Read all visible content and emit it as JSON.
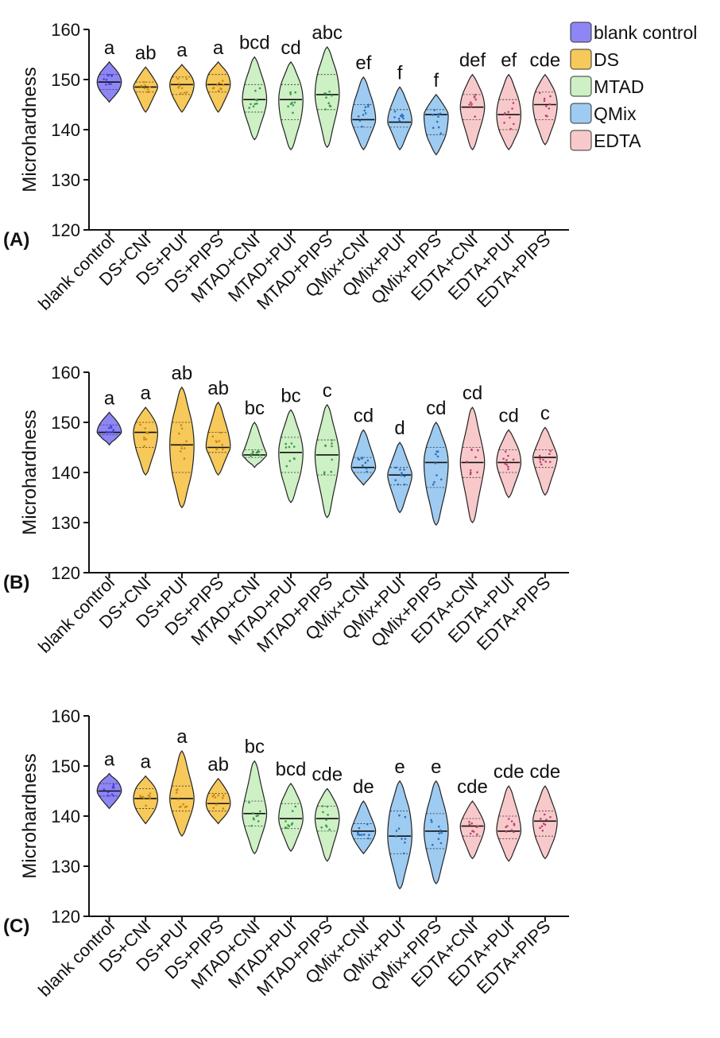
{
  "chart_data": [
    {
      "type": "violin",
      "panel_label": "(A)",
      "ylabel": "Microhardness",
      "ylim": [
        120,
        160
      ],
      "yticks": [
        "120",
        "130",
        "140",
        "150",
        "160"
      ],
      "categories": [
        "blank control",
        "DS+CNI",
        "DS+PUI",
        "DS+PIPS",
        "MTAD+CNI",
        "MTAD+PUI",
        "MTAD+PIPS",
        "QMix+CNI",
        "QMix+PUI",
        "QMix+PIPS",
        "EDTA+CNI",
        "EDTA+PUI",
        "EDTA+PIPS"
      ],
      "groups": [
        "blank control",
        "DS",
        "DS",
        "DS",
        "MTAD",
        "MTAD",
        "MTAD",
        "QMix",
        "QMix",
        "QMix",
        "EDTA",
        "EDTA",
        "EDTA"
      ],
      "letters": [
        "a",
        "ab",
        "a",
        "a",
        "bcd",
        "cd",
        "abc",
        "ef",
        "f",
        "f",
        "def",
        "ef",
        "cde"
      ],
      "min": [
        145.5,
        143.5,
        143.5,
        143.5,
        138,
        136,
        136.5,
        136,
        136,
        135,
        136,
        136,
        137
      ],
      "q1": [
        148,
        147.5,
        147,
        147.5,
        143.5,
        142,
        144,
        140.5,
        140.5,
        139,
        142,
        140,
        142
      ],
      "median": [
        149.5,
        148.5,
        149,
        149,
        146,
        146,
        147,
        142,
        141.5,
        143,
        144.5,
        143,
        145
      ],
      "q3": [
        151,
        149.5,
        150.5,
        151,
        149,
        149,
        151,
        145,
        144,
        144,
        147,
        146,
        147.5
      ],
      "max": [
        153.5,
        152.5,
        153,
        153.5,
        154.5,
        153.5,
        156.5,
        150.5,
        148.5,
        147,
        151,
        151,
        151
      ],
      "legend_position": "top-right"
    },
    {
      "type": "violin",
      "panel_label": "(B)",
      "ylabel": "Microhardness",
      "ylim": [
        120,
        160
      ],
      "yticks": [
        "120",
        "130",
        "140",
        "150",
        "160"
      ],
      "categories": [
        "blank control",
        "DS+CNI",
        "DS+PUI",
        "DS+PIPS",
        "MTAD+CNI",
        "MTAD+PUI",
        "MTAD+PIPS",
        "QMix+CNI",
        "QMix+PUI",
        "QMix+PIPS",
        "EDTA+CNI",
        "EDTA+PUI",
        "EDTA+PIPS"
      ],
      "groups": [
        "blank control",
        "DS",
        "DS",
        "DS",
        "MTAD",
        "MTAD",
        "MTAD",
        "QMix",
        "QMix",
        "QMix",
        "EDTA",
        "EDTA",
        "EDTA"
      ],
      "letters": [
        "a",
        "a",
        "ab",
        "ab",
        "bc",
        "bc",
        "c",
        "cd",
        "d",
        "cd",
        "cd",
        "cd",
        "c"
      ],
      "min": [
        145.5,
        139.5,
        133,
        139.5,
        141,
        134,
        131,
        137.5,
        132,
        129.5,
        130,
        135,
        135.5
      ],
      "q1": [
        147.5,
        145,
        140,
        144,
        143,
        140,
        139.5,
        140,
        137.5,
        137,
        139,
        140,
        141
      ],
      "median": [
        148,
        148,
        145.5,
        145,
        143.5,
        144,
        143.5,
        141,
        139.5,
        142,
        142,
        142,
        143
      ],
      "q3": [
        149.5,
        150,
        150,
        148,
        144.5,
        147,
        146.5,
        143,
        141,
        145,
        145,
        144.5,
        144.5
      ],
      "max": [
        152,
        153,
        157,
        154,
        150,
        152.5,
        153.5,
        148.5,
        146,
        150,
        153,
        148.5,
        149
      ],
      "legend_position": "none"
    },
    {
      "type": "violin",
      "panel_label": "(C)",
      "ylabel": "Microhardness",
      "ylim": [
        120,
        160
      ],
      "yticks": [
        "120",
        "130",
        "140",
        "150",
        "160"
      ],
      "categories": [
        "blank control",
        "DS+CNI",
        "DS+PUI",
        "DS+PIPS",
        "MTAD+CNI",
        "MTAD+PUI",
        "MTAD+PIPS",
        "QMix+CNI",
        "QMix+PUI",
        "QMix+PIPS",
        "EDTA+CNI",
        "EDTA+PUI",
        "EDTA+PIPS"
      ],
      "groups": [
        "blank control",
        "DS",
        "DS",
        "DS",
        "MTAD",
        "MTAD",
        "MTAD",
        "QMix",
        "QMix",
        "QMix",
        "EDTA",
        "EDTA",
        "EDTA"
      ],
      "letters": [
        "a",
        "a",
        "a",
        "ab",
        "bc",
        "bcd",
        "cde",
        "de",
        "e",
        "e",
        "cde",
        "cde",
        "cde"
      ],
      "min": [
        141.5,
        138.5,
        136,
        138.5,
        132.5,
        133,
        131,
        132.5,
        125.5,
        126.5,
        131.5,
        131,
        131.5
      ],
      "q1": [
        144,
        141.5,
        141,
        141,
        138,
        137.5,
        137,
        135.5,
        132.5,
        133.5,
        136,
        135.5,
        136
      ],
      "median": [
        145,
        143.5,
        143.5,
        142.5,
        140.5,
        139.5,
        139.5,
        137,
        136,
        137,
        138,
        137,
        139
      ],
      "q3": [
        146.5,
        145.5,
        146,
        144.5,
        143,
        142.5,
        142,
        138.5,
        141,
        140.5,
        139.5,
        140,
        141
      ],
      "max": [
        148.5,
        148,
        153,
        147.5,
        151,
        146.5,
        145.5,
        143,
        147,
        147,
        143,
        146,
        146
      ],
      "legend_position": "none"
    }
  ],
  "legend": [
    {
      "label": "blank control",
      "color": "#8e86f5"
    },
    {
      "label": "DS",
      "color": "#f7c95a"
    },
    {
      "label": "MTAD",
      "color": "#cdf0c4"
    },
    {
      "label": "QMix",
      "color": "#9ecbf1"
    },
    {
      "label": "EDTA",
      "color": "#f8c9cb"
    }
  ],
  "group_colors": {
    "blank control": "#8e86f5",
    "DS": "#f7c95a",
    "MTAD": "#cdf0c4",
    "QMix": "#9ecbf1",
    "EDTA": "#f8c9cb"
  },
  "outline_color": "#222222",
  "point_colors": {
    "blank control": "#4a3fd9",
    "DS": "#c98a10",
    "MTAD": "#3d9a4a",
    "QMix": "#2f6fba",
    "EDTA": "#c04070"
  }
}
